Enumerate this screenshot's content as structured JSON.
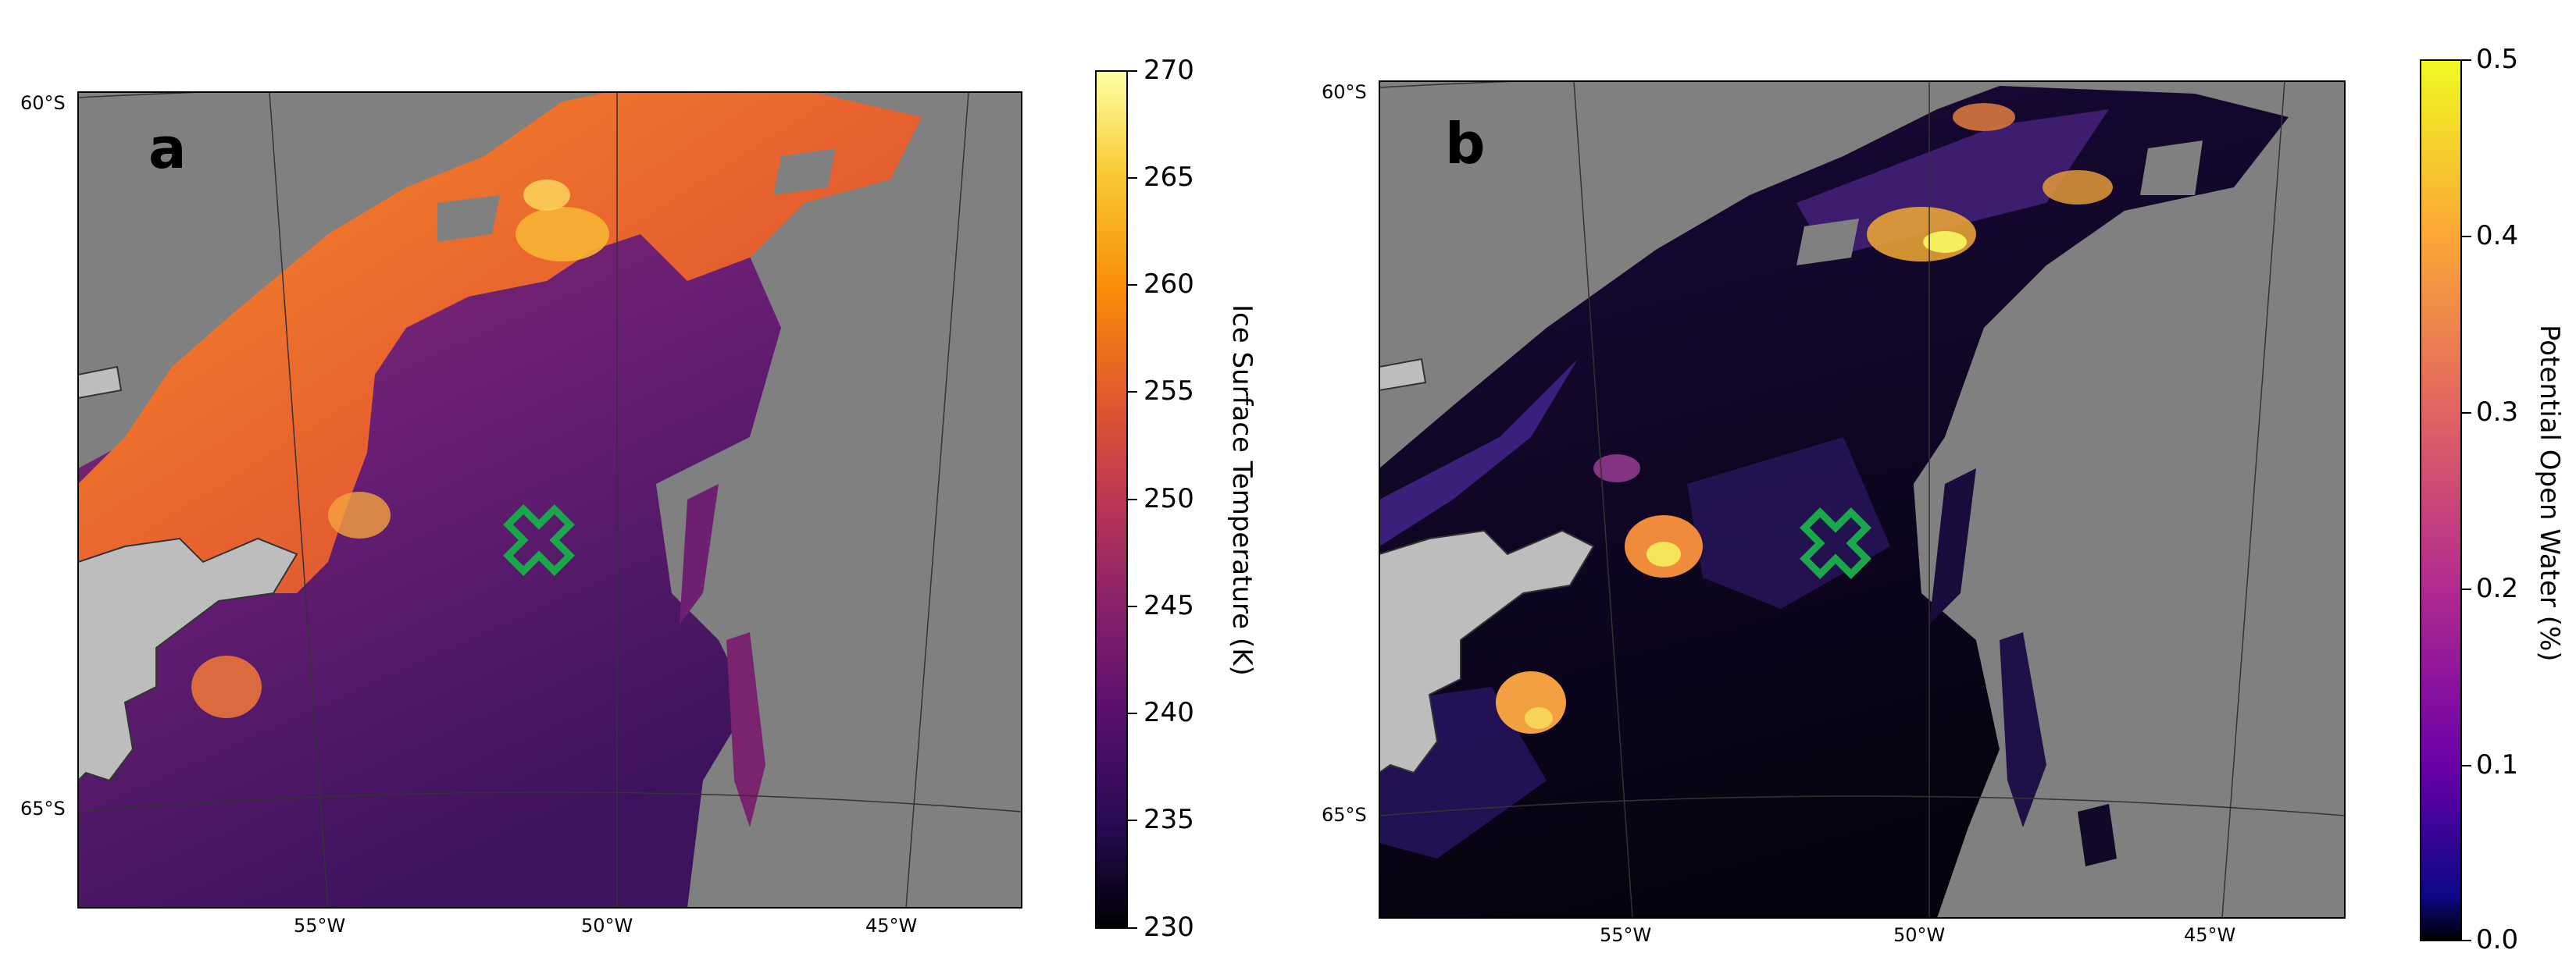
{
  "panels": [
    {
      "letter": "a",
      "lat_labels": [
        "60°S",
        "65°S"
      ],
      "lon_labels": [
        "55°W",
        "50°W",
        "45°W"
      ],
      "colorbar": {
        "title": "Ice Surface Temperature (K)",
        "ticks": [
          "270",
          "265",
          "260",
          "255",
          "250",
          "245",
          "240",
          "235",
          "230"
        ],
        "range": [
          230,
          270
        ],
        "colormap": "inferno",
        "title_rotation": "clockwise"
      },
      "marker": "green-x"
    },
    {
      "letter": "b",
      "lat_labels": [
        "60°S",
        "65°S"
      ],
      "lon_labels": [
        "55°W",
        "50°W",
        "45°W"
      ],
      "colorbar": {
        "title": "Potential Open Water (%)",
        "ticks": [
          "0.5",
          "0.4",
          "0.3",
          "0.2",
          "0.1",
          "0.0"
        ],
        "range": [
          0.0,
          0.5
        ],
        "colormap": "plasma",
        "title_rotation": "clockwise"
      },
      "marker": "green-x"
    }
  ],
  "colors": {
    "land_gray": "#bdbdbd",
    "ocean_gray": "#808080",
    "marker_green": "#1aa84b"
  }
}
